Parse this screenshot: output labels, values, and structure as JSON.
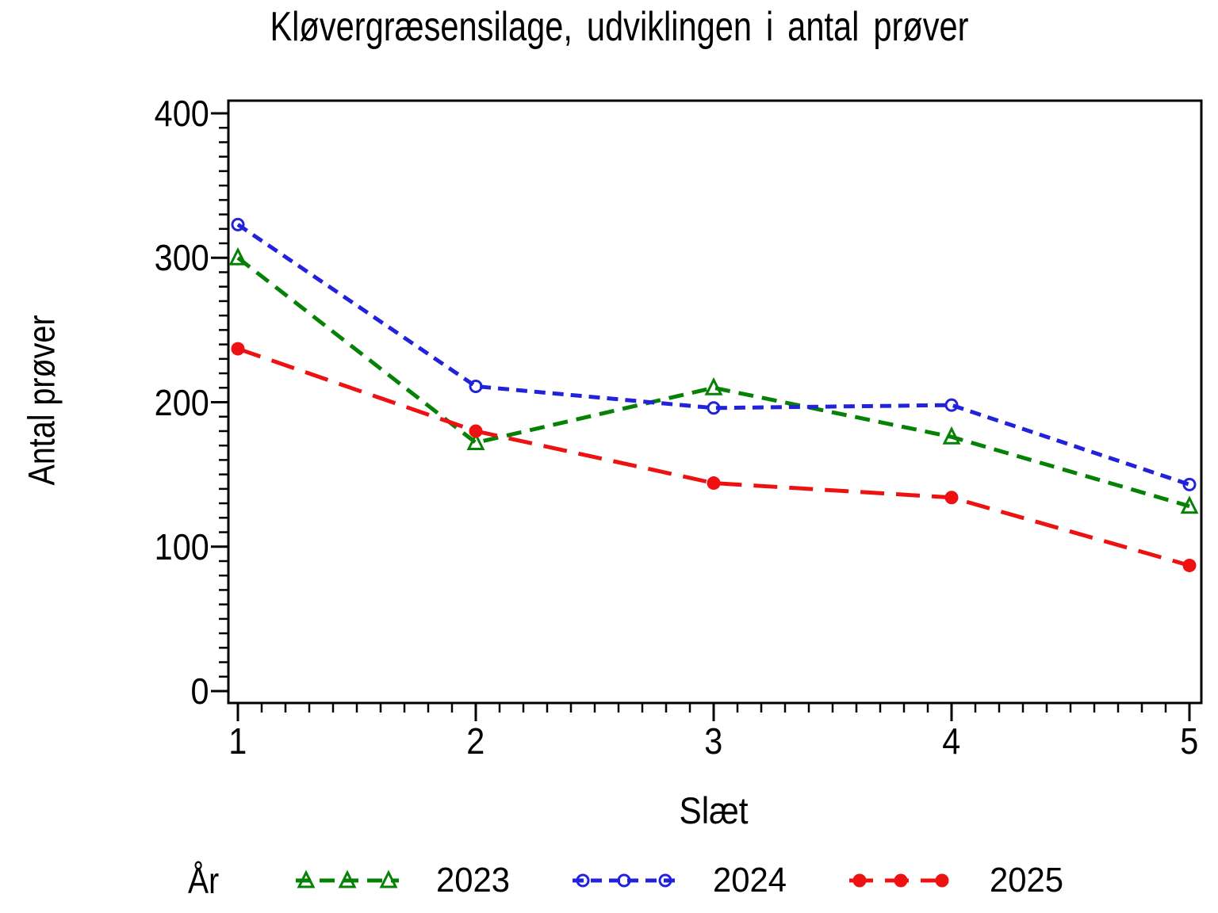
{
  "page": {
    "background": "#ffffff",
    "text_color": "#000000"
  },
  "chart_data": {
    "type": "line",
    "title": "Kløvergræsensilage, udviklingen i antal prøver",
    "xlabel": "Slæt",
    "ylabel": "Antal prøver",
    "legend_title": "År",
    "legend_position": "bottom",
    "grid": false,
    "axis_color": "#000000",
    "x": [
      1,
      2,
      3,
      4,
      5
    ],
    "x_ticks": [
      1,
      2,
      3,
      4,
      5
    ],
    "x_tick_labels": [
      "1",
      "2",
      "3",
      "4",
      "5"
    ],
    "xlim": [
      1,
      5
    ],
    "x_minor_tick_step": 0.1,
    "y_ticks": [
      0,
      100,
      200,
      300,
      400
    ],
    "y_tick_labels": [
      "0",
      "100",
      "200",
      "300",
      "400"
    ],
    "ylim": [
      0,
      400
    ],
    "y_minor_tick_step": 10,
    "series": [
      {
        "name": "2023",
        "color": "#058205",
        "marker": "open-triangle",
        "dash": [
          19,
          11
        ],
        "values": [
          300,
          172,
          210,
          176,
          128
        ]
      },
      {
        "name": "2024",
        "color": "#2222DB",
        "marker": "open-circle",
        "dash": [
          14,
          9
        ],
        "values": [
          323,
          211,
          196,
          198,
          143
        ]
      },
      {
        "name": "2025",
        "color": "#EE1111",
        "marker": "filled-circle",
        "dash": [
          30,
          15
        ],
        "values": [
          237,
          180,
          144,
          134,
          87
        ]
      }
    ]
  }
}
